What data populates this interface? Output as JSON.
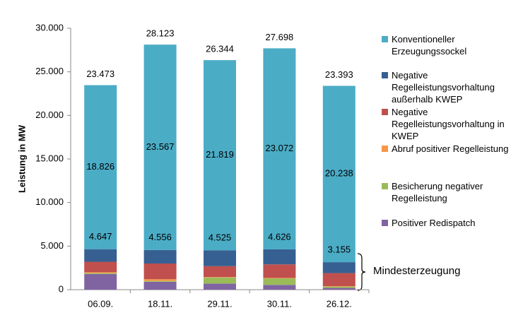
{
  "chart_data": {
    "type": "stacked_bar",
    "y_label": "Leistung in MW",
    "categories": [
      "06.09.",
      "18.11.",
      "29.11.",
      "30.11.",
      "26.12."
    ],
    "series": [
      {
        "name": "Positiver Redispatch",
        "color": "#8064a2",
        "values": [
          1800,
          900,
          700,
          550,
          200
        ]
      },
      {
        "name": "Besicherung negativer Regelleistung",
        "color": "#9bbb59",
        "values": [
          100,
          100,
          700,
          750,
          150
        ]
      },
      {
        "name": "Abruf positiver Regelleistung",
        "color": "#f79646",
        "values": [
          100,
          200,
          50,
          50,
          50
        ]
      },
      {
        "name": "Negative Regelleistungsvorhaltung in KWEP",
        "color": "#c0504d",
        "values": [
          1200,
          1800,
          1250,
          1550,
          1500
        ]
      },
      {
        "name": "Negative Regelleistungsvorhaltung außerhalb KWEP",
        "color": "#376092",
        "values": [
          1447,
          1556,
          1825,
          1726,
          1255
        ]
      },
      {
        "name": "Konventioneller Erzeugungssockel",
        "color": "#4bacc6",
        "values": [
          18826,
          23567,
          21819,
          23072,
          20238
        ],
        "value_labels": [
          "18.826",
          "23.567",
          "21.819",
          "23.072",
          "20.238"
        ]
      }
    ],
    "totals": {
      "values": [
        23473,
        28123,
        26344,
        27698,
        23393
      ],
      "value_labels": [
        "23.473",
        "28.123",
        "26.344",
        "27.698",
        "23.393"
      ]
    },
    "subtotals": {
      "values": [
        4647,
        4556,
        4525,
        4626,
        3155
      ],
      "value_labels": [
        "4.647",
        "4.556",
        "4.525",
        "4.626",
        "3.155"
      ]
    },
    "annotation": "Mindesterzeugung",
    "ylim": [
      0,
      30000
    ],
    "yticks": [
      {
        "value": 0,
        "label": "0"
      },
      {
        "value": 5000,
        "label": "5.000"
      },
      {
        "value": 10000,
        "label": "10.000"
      },
      {
        "value": 15000,
        "label": "15.000"
      },
      {
        "value": 20000,
        "label": "20.000"
      },
      {
        "value": 25000,
        "label": "25.000"
      },
      {
        "value": 30000,
        "label": "30.000"
      }
    ]
  }
}
